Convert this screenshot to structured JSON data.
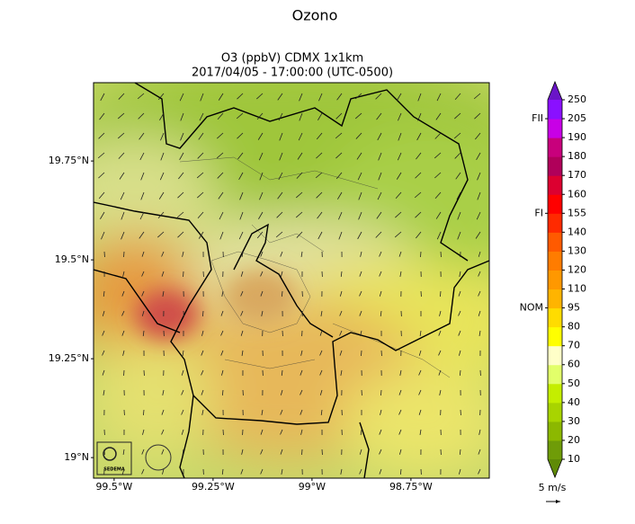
{
  "title": "Ozono",
  "map": {
    "subtitle": "O3 (ppbV) CDMX 1x1km",
    "timestamp": "2017/04/05 - 17:00:00 (UTC-0500)",
    "lonlim": [
      -99.552,
      -98.552
    ],
    "latlim": [
      18.948,
      19.948
    ],
    "lonticks": [
      {
        "value": -99.5,
        "label": "99.5°W"
      },
      {
        "value": -99.25,
        "label": "99.25°W"
      },
      {
        "value": -99.0,
        "label": "99°W"
      },
      {
        "value": -98.75,
        "label": "98.75°W"
      }
    ],
    "latticks": [
      {
        "value": 19.75,
        "label": "19.75°N"
      },
      {
        "value": 19.5,
        "label": "19.5°N"
      },
      {
        "value": 19.25,
        "label": "19.25°N"
      },
      {
        "value": 19.0,
        "label": "19°N"
      }
    ],
    "logo": "SEDEMA"
  },
  "colorbar": {
    "levels": [
      10,
      20,
      30,
      40,
      50,
      60,
      70,
      80,
      95,
      110,
      120,
      130,
      140,
      155,
      160,
      170,
      180,
      190,
      205,
      250
    ],
    "colors": [
      "#6f9c08",
      "#8cb800",
      "#a8d400",
      "#c4ee00",
      "#e2ff6a",
      "#ffffc8",
      "#ffff00",
      "#ffdc00",
      "#ffb400",
      "#ff9800",
      "#ff7c00",
      "#ff5a00",
      "#ff2a00",
      "#ff0000",
      "#dc0030",
      "#b0005a",
      "#c8007c",
      "#c800e6",
      "#8a10ff"
    ],
    "under_color": "#5f8a06",
    "over_color": "#6a14c8",
    "standards": [
      {
        "label": "FII",
        "value": 205
      },
      {
        "label": "FI",
        "value": 155
      },
      {
        "label": "NOM",
        "value": 95
      }
    ],
    "wind_scale": "5 m/s"
  }
}
